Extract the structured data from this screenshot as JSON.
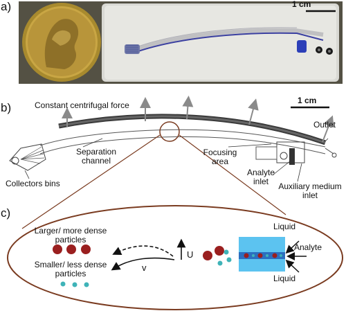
{
  "panels": {
    "a": {
      "letter": "a)",
      "scale_label": "1 cm"
    },
    "b": {
      "letter": "b)",
      "scale_label": "1 cm",
      "labels": {
        "force": "Constant centrifugal force",
        "outlet": "Outlet",
        "separation_channel_line1": "Separation",
        "separation_channel_line2": "channel",
        "focusing_line1": "Focusing",
        "focusing_line2": "area",
        "analyte_inlet_line1": "Analyte",
        "analyte_inlet_line2": "inlet",
        "aux_line1": "Auxiliary medium",
        "aux_line2": "inlet",
        "collectors": "Collectors bins"
      }
    },
    "c": {
      "letter": "c)",
      "labels": {
        "larger_line1": "Larger/ more dense",
        "larger_line2": "particles",
        "smaller_line1": "Smaller/ less dense",
        "smaller_line2": "particles",
        "u": "U",
        "v": "v",
        "liquid_top": "Liquid",
        "analyte": "Analyte",
        "liquid_bottom": "Liquid"
      }
    }
  },
  "colors": {
    "large_particle": "#9a1f1f",
    "small_particle": "#3fb3b8",
    "liquid": "#5cc3f0",
    "channel_stripe": "#2b2f8c",
    "ellipse_border": "#7a3b20"
  },
  "icons": [
    "coin-photo",
    "chip-photo",
    "arrow-up-icon",
    "arrow-curved-icon"
  ]
}
